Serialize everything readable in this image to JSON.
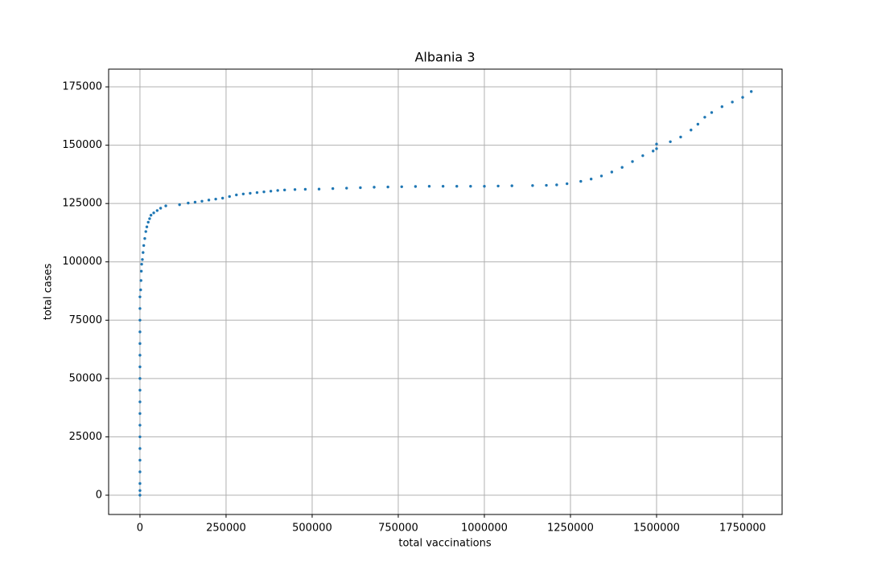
{
  "chart_data": {
    "type": "scatter",
    "title": "Albania 3",
    "x_label": "total vaccinations",
    "y_label": "total cases",
    "color": "#1f77b4",
    "grid": true,
    "xlim": [
      -91000,
      1864500
    ],
    "ylim": [
      -8270,
      182600
    ],
    "xticks": [
      0,
      250000,
      500000,
      750000,
      1000000,
      1250000,
      1500000,
      1750000
    ],
    "yticks": [
      0,
      25000,
      50000,
      75000,
      100000,
      125000,
      150000,
      175000
    ],
    "x": [
      0,
      0,
      0,
      0,
      0,
      0,
      0,
      0,
      0,
      0,
      0,
      0,
      0,
      0,
      0,
      0,
      0,
      0,
      0,
      2000,
      3000,
      4000,
      5000,
      7000,
      9000,
      11000,
      14000,
      17000,
      20000,
      24000,
      28000,
      32000,
      40000,
      50000,
      60000,
      75000,
      115000,
      140000,
      160000,
      180000,
      200000,
      220000,
      240000,
      260000,
      280000,
      300000,
      320000,
      340000,
      360000,
      380000,
      400000,
      420000,
      450000,
      480000,
      520000,
      560000,
      600000,
      640000,
      680000,
      720000,
      760000,
      800000,
      840000,
      880000,
      920000,
      960000,
      1000000,
      1040000,
      1080000,
      1140000,
      1180000,
      1210000,
      1240000,
      1280000,
      1310000,
      1340000,
      1370000,
      1400000,
      1430000,
      1460000,
      1490000,
      1500000,
      1500000,
      1540000,
      1570000,
      1600000,
      1620000,
      1640000,
      1660000,
      1690000,
      1720000,
      1750000,
      1775000
    ],
    "values": [
      0,
      2000,
      5000,
      10000,
      15000,
      20000,
      25000,
      30000,
      35000,
      40000,
      45000,
      50000,
      55000,
      60000,
      65000,
      70000,
      75000,
      80000,
      85000,
      88000,
      92000,
      96000,
      99000,
      101000,
      104000,
      107000,
      110000,
      113000,
      115000,
      117000,
      118500,
      120000,
      121000,
      122000,
      123000,
      124000,
      124500,
      125200,
      125600,
      126000,
      126500,
      126900,
      127300,
      128000,
      128700,
      129100,
      129400,
      129700,
      130000,
      130300,
      130600,
      130800,
      131000,
      131100,
      131200,
      131400,
      131600,
      131800,
      132000,
      132100,
      132200,
      132300,
      132400,
      132400,
      132400,
      132400,
      132400,
      132500,
      132600,
      132700,
      132800,
      133000,
      133500,
      134500,
      135500,
      136800,
      138500,
      140500,
      143000,
      145500,
      147500,
      148500,
      150500,
      151500,
      153500,
      156500,
      159000,
      162000,
      164000,
      166500,
      168500,
      170500,
      173000
    ]
  }
}
